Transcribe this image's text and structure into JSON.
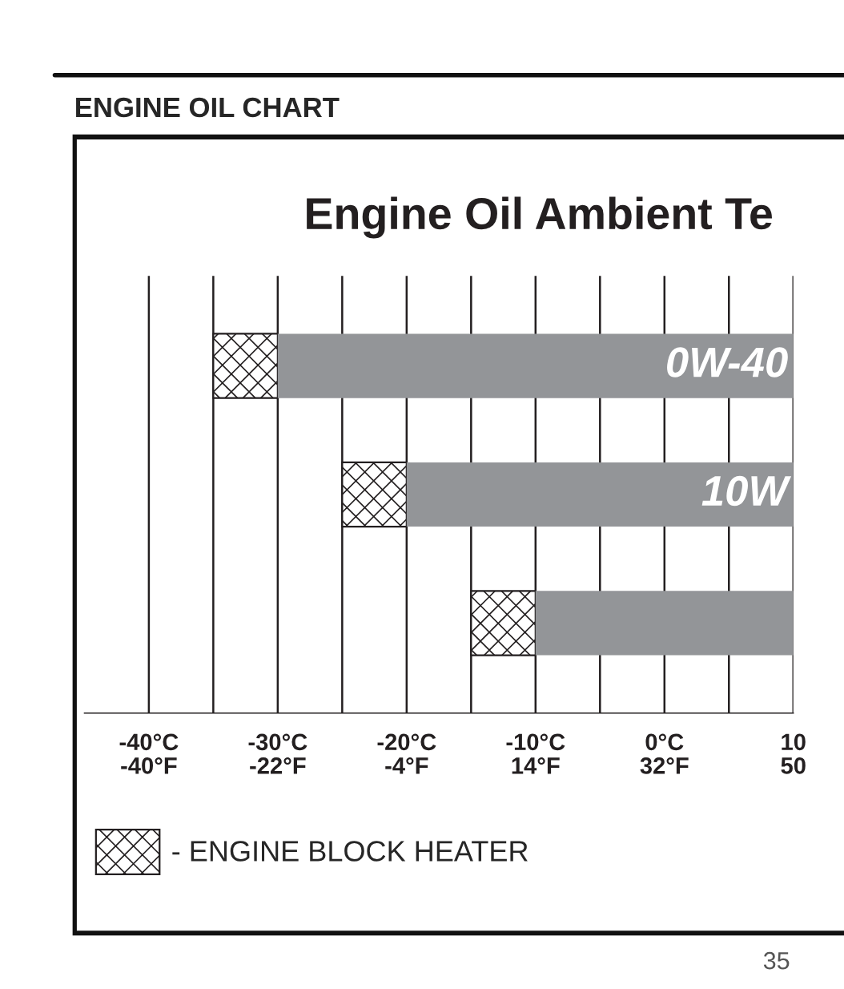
{
  "chart_data": {
    "type": "bar",
    "orientation": "horizontal",
    "title": "ENGINE OIL CHART",
    "subtitle": "Engine Oil Ambient Te",
    "categories": [
      "0W-40",
      "10W",
      null
    ],
    "series": [
      {
        "name": "- ENGINE BLOCK HEATER",
        "color": "#231f20",
        "base": [
          -35,
          -25,
          -15
        ],
        "values": [
          5,
          5,
          5
        ]
      },
      {
        "color": "#939598",
        "base": [
          -30,
          -20,
          -10
        ],
        "values": [
          40,
          30,
          20
        ]
      }
    ],
    "xlim": [
      -45,
      10
    ],
    "xticks": [
      {
        "value": -40,
        "label": "-40°C"
      },
      {
        "value": -35,
        "label": null
      },
      {
        "value": -30,
        "label": "-30°C"
      },
      {
        "value": -25,
        "label": null
      },
      {
        "value": -20,
        "label": "-20°C"
      },
      {
        "value": -15,
        "label": null
      },
      {
        "value": -10,
        "label": "-10°C"
      },
      {
        "value": -5,
        "label": null
      },
      {
        "value": 0,
        "label": "0°C"
      },
      {
        "value": 5,
        "label": null
      },
      10
    ],
    "x2lim": [
      -49,
      50
    ],
    "x2ticks": [
      {
        "value": -40,
        "label": "-40°F"
      },
      {
        "value": -22,
        "label": "-22°F"
      },
      {
        "value": -4,
        "label": "-4°F"
      },
      {
        "value": 14,
        "label": "14°F"
      },
      {
        "value": 32,
        "label": "32°F"
      },
      50
    ],
    "grid": "x",
    "legend": "bottom",
    "annotations": [
      "35"
    ]
  }
}
